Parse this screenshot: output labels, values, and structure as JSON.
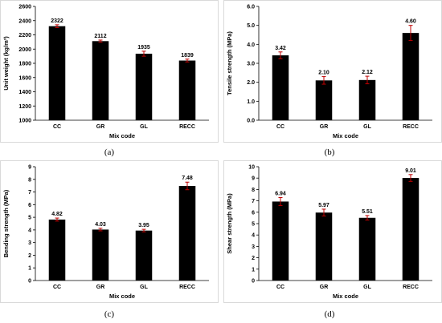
{
  "captions": [
    "(a)",
    "(b)",
    "(c)",
    "(d)"
  ],
  "colors": {
    "bar": "#000000",
    "error_bar": "#c00000",
    "frame": "#d9d9d9"
  },
  "chart_data": [
    {
      "type": "bar",
      "categories": [
        "CC",
        "GR",
        "GL",
        "RECC"
      ],
      "values": [
        2322,
        2112,
        1935,
        1839
      ],
      "value_labels": [
        "2322",
        "2112",
        "1935",
        "1839"
      ],
      "errors": [
        20,
        15,
        35,
        20
      ],
      "xlabel": "Mix code",
      "ylabel": "Unit weight (kg/m³)",
      "ylim": [
        1000,
        2600
      ],
      "yticks": [
        1000,
        1200,
        1400,
        1600,
        1800,
        2000,
        2200,
        2400,
        2600
      ],
      "ytick_labels": [
        "1000",
        "1200",
        "1400",
        "1600",
        "1800",
        "2000",
        "2200",
        "2400",
        "2600"
      ],
      "grid": false
    },
    {
      "type": "bar",
      "categories": [
        "CC",
        "GR",
        "GL",
        "RECC"
      ],
      "values": [
        3.42,
        2.1,
        2.12,
        4.6
      ],
      "value_labels": [
        "3.42",
        "2.10",
        "2.12",
        "4.60"
      ],
      "errors": [
        0.18,
        0.2,
        0.2,
        0.4
      ],
      "xlabel": "Mix code",
      "ylabel": "Tensile strength (MPa)",
      "ylim": [
        0,
        6
      ],
      "yticks": [
        0,
        1,
        2,
        3,
        4,
        5,
        6
      ],
      "ytick_labels": [
        "0.0",
        "1.0",
        "2.0",
        "3.0",
        "4.0",
        "5.0",
        "6.0"
      ],
      "grid": false
    },
    {
      "type": "bar",
      "categories": [
        "CC",
        "GR",
        "GL",
        "RECC"
      ],
      "values": [
        4.82,
        4.03,
        3.95,
        7.48
      ],
      "value_labels": [
        "4.82",
        "4.03",
        "3.95",
        "7.48"
      ],
      "errors": [
        0.12,
        0.1,
        0.1,
        0.3
      ],
      "xlabel": "Mix code",
      "ylabel": "Bending strength (MPa)",
      "ylim": [
        0,
        9
      ],
      "yticks": [
        0,
        1,
        2,
        3,
        4,
        5,
        6,
        7,
        8,
        9
      ],
      "ytick_labels": [
        "0",
        "1",
        "2",
        "3",
        "4",
        "5",
        "6",
        "7",
        "8",
        "9"
      ],
      "grid": false
    },
    {
      "type": "bar",
      "categories": [
        "CC",
        "GR",
        "GL",
        "RECC"
      ],
      "values": [
        6.94,
        5.97,
        5.51,
        9.01
      ],
      "value_labels": [
        "6.94",
        "5.97",
        "5.51",
        "9.01"
      ],
      "errors": [
        0.35,
        0.3,
        0.2,
        0.3
      ],
      "xlabel": "Mix code",
      "ylabel": "Shear strength (MPa)",
      "ylim": [
        0,
        10
      ],
      "yticks": [
        0,
        1,
        2,
        3,
        4,
        5,
        6,
        7,
        8,
        9,
        10
      ],
      "ytick_labels": [
        "0",
        "1",
        "2",
        "3",
        "4",
        "5",
        "6",
        "7",
        "8",
        "9",
        "10"
      ],
      "grid": false
    }
  ]
}
